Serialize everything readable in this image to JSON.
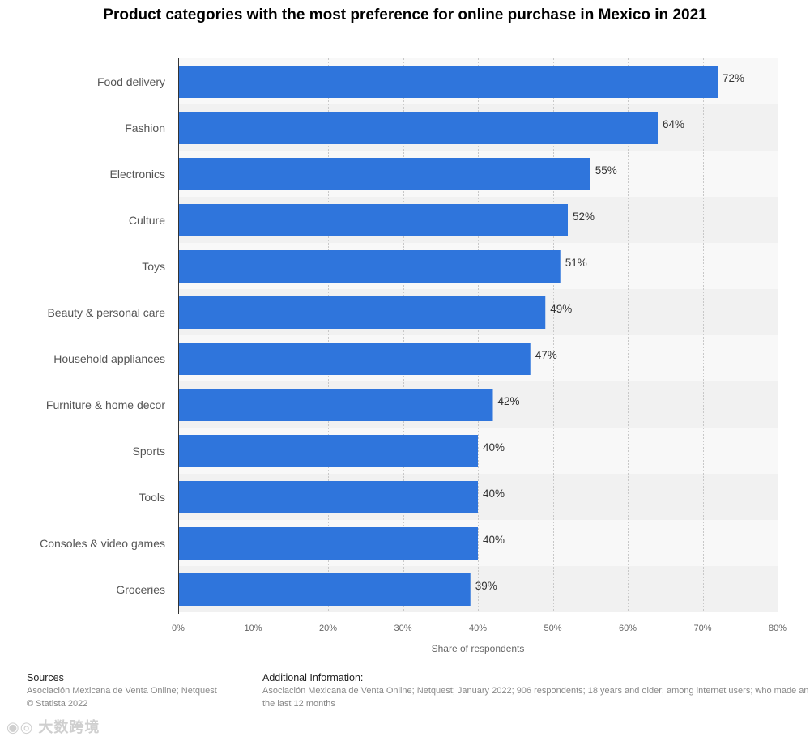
{
  "title": "Product categories with the most preference for online purchase in Mexico in 2021",
  "chart_data": {
    "type": "bar",
    "orientation": "horizontal",
    "title": "Product categories with the most preference for online purchase in Mexico in 2021",
    "categories": [
      "Food delivery",
      "Fashion",
      "Electronics",
      "Culture",
      "Toys",
      "Beauty & personal care",
      "Household appliances",
      "Furniture & home decor",
      "Sports",
      "Tools",
      "Consoles & video games",
      "Groceries"
    ],
    "values": [
      72,
      64,
      55,
      52,
      51,
      49,
      47,
      42,
      40,
      40,
      40,
      39
    ],
    "value_labels": [
      "72%",
      "64%",
      "55%",
      "52%",
      "51%",
      "49%",
      "47%",
      "42%",
      "40%",
      "40%",
      "40%",
      "39%"
    ],
    "xlabel": "Share of respondents",
    "ylabel": "",
    "xlim": [
      0,
      80
    ],
    "ticks": [
      0,
      10,
      20,
      30,
      40,
      50,
      60,
      70,
      80
    ],
    "tick_labels": [
      "0%",
      "10%",
      "20%",
      "30%",
      "40%",
      "50%",
      "60%",
      "70%",
      "80%"
    ],
    "grid": true,
    "bar_color": "#2f75dc"
  },
  "footer": {
    "sources_heading": "Sources",
    "sources_line1": "Asociación Mexicana de Venta Online; Netquest",
    "sources_line2": "© Statista 2022",
    "info_heading": "Additional Information:",
    "info_line1": "Asociación Mexicana de Venta Online; Netquest; January 2022; 906 respondents; 18 years and older; among internet users; who made an online purchase in",
    "info_line2": "the last 12 months"
  },
  "watermark": "大数跨境"
}
